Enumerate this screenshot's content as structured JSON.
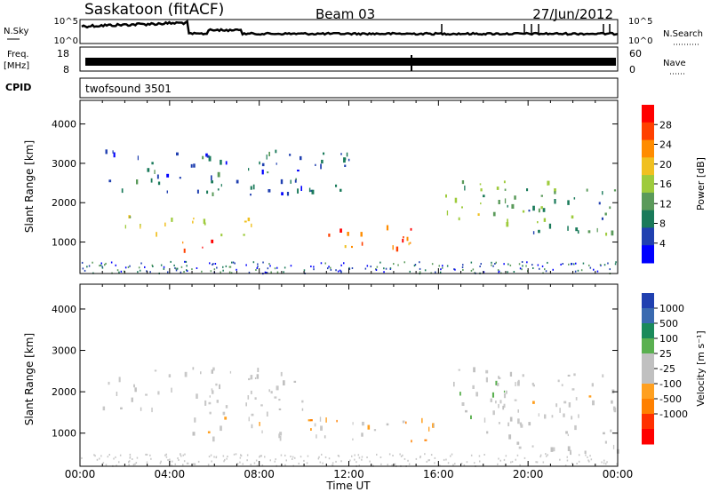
{
  "header": {
    "station": "Saskatoon (fitACF)",
    "beam": "Beam 03",
    "date": "27/Jun/2012"
  },
  "noise_panel": {
    "left_label": "N.Sky",
    "right_label": "N.Search",
    "left_ticks": [
      "10^5",
      "10^0"
    ],
    "right_ticks": [
      "10^5",
      "10^0"
    ]
  },
  "freq_panel": {
    "left_label_line1": "Freq.",
    "left_label_line2": "[MHz]",
    "right_label": "Nave",
    "left_ticks": [
      "18",
      "8"
    ],
    "right_ticks": [
      "60",
      "0"
    ]
  },
  "cpid_panel": {
    "label": "CPID",
    "program": "twofsound 3501"
  },
  "time_axis": {
    "label": "Time UT",
    "ticks": [
      "00:00",
      "04:00",
      "08:00",
      "12:00",
      "16:00",
      "20:00",
      "00:00"
    ]
  },
  "range_axis": {
    "label": "Slant Range [km]",
    "ticks": [
      "1000",
      "2000",
      "3000",
      "4000"
    ]
  },
  "colors": {
    "power_scale": [
      "#0000ff",
      "#2040b0",
      "#1a7a5a",
      "#5a9a5a",
      "#9ecb3c",
      "#f0c020",
      "#ff8c00",
      "#ff4000",
      "#ff0000"
    ],
    "velocity_scale": [
      "#2040b0",
      "#3a6ab0",
      "#1a8a5a",
      "#5ab050",
      "#c0c0c0",
      "#c0c0c0",
      "#ffa020",
      "#ff8000",
      "#ff3000",
      "#ff0000"
    ],
    "ground_scatter": "#c8c8c8"
  },
  "chart_data": [
    {
      "type": "heatmap",
      "title": "Power",
      "ylabel": "Slant Range [km]",
      "xlabel": "",
      "xlim": [
        "00:00",
        "24:00"
      ],
      "ylim": [
        200,
        4600
      ],
      "colorbar": {
        "label": "Power [dB]",
        "ticks": [
          "4",
          "8",
          "12",
          "16",
          "20",
          "24",
          "28"
        ],
        "range": [
          0,
          32
        ]
      },
      "features": [
        {
          "hours": [
            1,
            12
          ],
          "range_km": [
            2200,
            3400
          ],
          "power_db": 6
        },
        {
          "hours": [
            2,
            8
          ],
          "range_km": [
            1200,
            1700
          ],
          "power_db": 18
        },
        {
          "hours": [
            4.5,
            6.5
          ],
          "range_km": [
            800,
            1200
          ],
          "power_db": 28
        },
        {
          "hours": [
            11,
            15
          ],
          "range_km": [
            800,
            1500
          ],
          "power_db": 26
        },
        {
          "hours": [
            16,
            21
          ],
          "range_km": [
            1500,
            2600
          ],
          "power_db": 14
        },
        {
          "hours": [
            20,
            24
          ],
          "range_km": [
            1200,
            2400
          ],
          "power_db": 10
        }
      ]
    },
    {
      "type": "heatmap",
      "title": "Velocity",
      "ylabel": "Slant Range [km]",
      "xlabel": "Time UT",
      "xlim": [
        "00:00",
        "24:00"
      ],
      "ylim": [
        200,
        4600
      ],
      "colorbar": {
        "label": "Velocity [m s⁻¹]",
        "ticks": [
          "1000",
          "500",
          "100",
          "25",
          "-25",
          "-100",
          "-500",
          "-1000"
        ],
        "range": [
          -1000,
          1000
        ]
      },
      "features": [
        {
          "hours": [
            1,
            10
          ],
          "range_km": [
            1500,
            2600
          ],
          "velocity_ms": 0
        },
        {
          "hours": [
            5,
            11
          ],
          "range_km": [
            900,
            1500
          ],
          "velocity_ms": -200
        },
        {
          "hours": [
            10,
            16
          ],
          "range_km": [
            800,
            1400
          ],
          "velocity_ms": -300
        },
        {
          "hours": [
            16,
            19
          ],
          "range_km": [
            1400,
            2600
          ],
          "velocity_ms": 200
        },
        {
          "hours": [
            18,
            24
          ],
          "range_km": [
            500,
            2500
          ],
          "velocity_ms": 0
        }
      ]
    }
  ]
}
